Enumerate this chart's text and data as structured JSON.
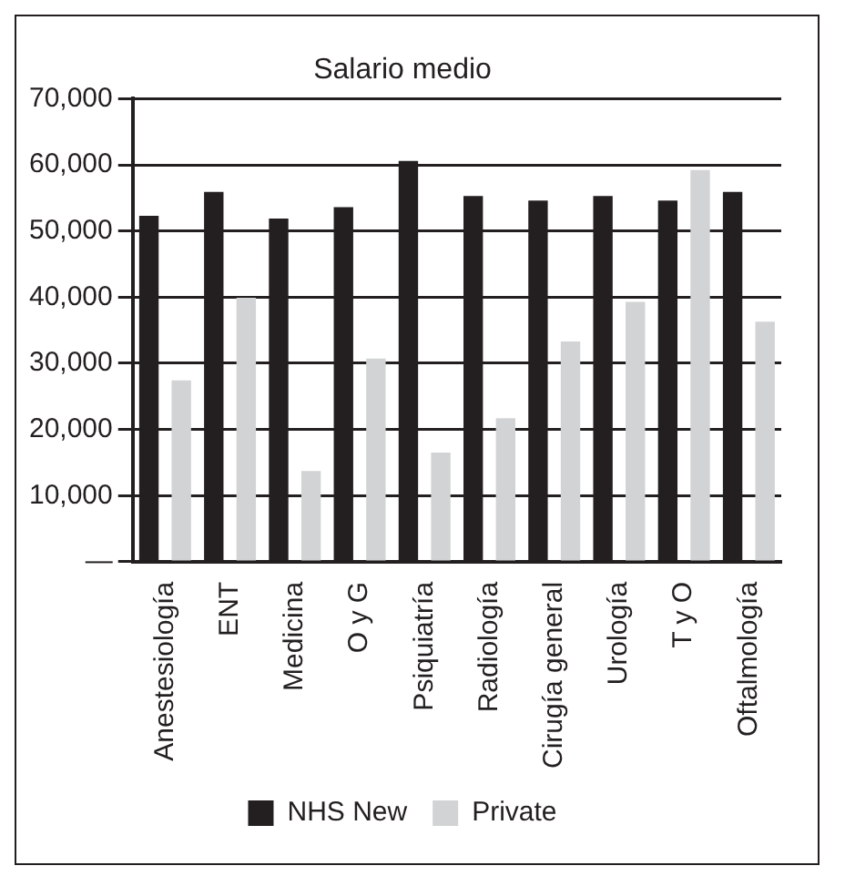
{
  "chart_data": {
    "type": "bar",
    "title": "Salario medio",
    "categories": [
      "Anestesiología",
      "ENT",
      "Medicina",
      "O y G",
      "Psiquiatría",
      "Radiología",
      "Cirugía general",
      "Urología",
      "T y O",
      "Oftalmología"
    ],
    "series": [
      {
        "name": "NHS New",
        "color": "#231f20",
        "values": [
          52300,
          55900,
          51900,
          53600,
          60600,
          55300,
          54600,
          55300,
          54600,
          55900
        ]
      },
      {
        "name": "Private",
        "color": "#d1d3d4",
        "values": [
          27400,
          39900,
          13700,
          30700,
          16500,
          21700,
          33300,
          39300,
          59200,
          36300
        ]
      }
    ],
    "ylim": [
      0,
      70000
    ],
    "yticks": [
      {
        "value": 0,
        "label": "—"
      },
      {
        "value": 10000,
        "label": "10,000"
      },
      {
        "value": 20000,
        "label": "20,000"
      },
      {
        "value": 30000,
        "label": "30,000"
      },
      {
        "value": 40000,
        "label": "40,000"
      },
      {
        "value": 50000,
        "label": "50,000"
      },
      {
        "value": 60000,
        "label": "60,000"
      },
      {
        "value": 70000,
        "label": "70,000"
      }
    ],
    "grid": "y",
    "legend": "bottom"
  }
}
